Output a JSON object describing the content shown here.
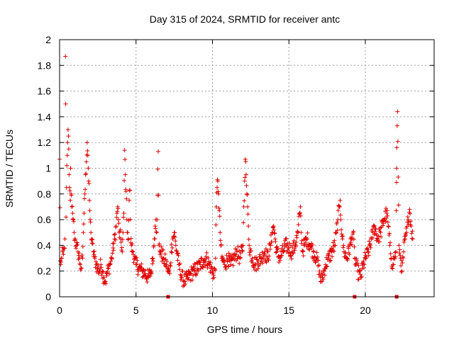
{
  "chart_data": {
    "type": "scatter",
    "title": "Day 315 of 2024, SRMTID for receiver antc",
    "xlabel": "GPS time / hours",
    "ylabel": "SRMTID / TECUs",
    "xlim": [
      0,
      24.5
    ],
    "ylim": [
      0,
      2
    ],
    "xticks": [
      0,
      5,
      10,
      15,
      20
    ],
    "xtick_labels": [
      "0",
      "5",
      "10",
      "15",
      "20"
    ],
    "yticks": [
      0,
      0.2,
      0.4,
      0.6,
      0.8,
      1.0,
      1.2,
      1.4,
      1.6,
      1.8,
      2.0
    ],
    "ytick_labels": [
      "0",
      "0.2",
      "0.4",
      "0.6",
      "0.8",
      "1",
      "1.2",
      "1.4",
      "1.6",
      "1.8",
      "2"
    ],
    "grid": true,
    "marker": "plus",
    "series": [
      {
        "name": "SRMTID",
        "color": "#e00000",
        "points": [
          [
            0.0,
            1.07
          ],
          [
            0.05,
            0.28
          ],
          [
            0.1,
            0.27
          ],
          [
            0.15,
            0.3
          ],
          [
            0.2,
            0.35
          ],
          [
            0.25,
            0.33
          ],
          [
            0.3,
            0.38
          ],
          [
            0.35,
            0.45
          ],
          [
            0.38,
            1.87
          ],
          [
            0.4,
            1.5
          ],
          [
            0.42,
            0.62
          ],
          [
            0.45,
            0.85
          ],
          [
            0.5,
            1.1
          ],
          [
            0.52,
            1.2
          ],
          [
            0.55,
            1.3
          ],
          [
            0.58,
            1.25
          ],
          [
            0.6,
            1.15
          ],
          [
            0.62,
            0.95
          ],
          [
            0.65,
            0.85
          ],
          [
            0.7,
            0.75
          ],
          [
            0.72,
            1.0
          ],
          [
            0.75,
            0.8
          ],
          [
            0.8,
            0.7
          ],
          [
            0.85,
            0.65
          ],
          [
            0.9,
            0.6
          ],
          [
            0.95,
            0.5
          ],
          [
            1.0,
            0.45
          ],
          [
            1.1,
            0.4
          ],
          [
            1.2,
            0.35
          ],
          [
            1.3,
            0.3
          ],
          [
            1.35,
            0.25
          ],
          [
            1.4,
            0.22
          ],
          [
            1.5,
            0.3
          ],
          [
            1.55,
            0.5
          ],
          [
            1.6,
            0.65
          ],
          [
            1.65,
            0.8
          ],
          [
            1.7,
            0.95
          ],
          [
            1.75,
            1.05
          ],
          [
            1.8,
            1.2
          ],
          [
            1.85,
            1.1
          ],
          [
            1.9,
            0.9
          ],
          [
            1.95,
            0.75
          ],
          [
            2.0,
            0.6
          ],
          [
            2.05,
            0.5
          ],
          [
            2.1,
            0.45
          ],
          [
            2.2,
            0.35
          ],
          [
            2.3,
            0.3
          ],
          [
            2.4,
            0.25
          ],
          [
            2.5,
            0.22
          ],
          [
            2.6,
            0.2
          ],
          [
            2.7,
            0.25
          ],
          [
            2.8,
            0.2
          ],
          [
            2.9,
            0.15
          ],
          [
            3.0,
            0.12
          ],
          [
            3.1,
            0.18
          ],
          [
            3.2,
            0.22
          ],
          [
            3.3,
            0.25
          ],
          [
            3.4,
            0.3
          ],
          [
            3.5,
            0.38
          ],
          [
            3.6,
            0.45
          ],
          [
            3.7,
            0.55
          ],
          [
            3.75,
            0.65
          ],
          [
            3.8,
            0.7
          ],
          [
            3.85,
            0.6
          ],
          [
            3.9,
            0.5
          ],
          [
            4.0,
            0.45
          ],
          [
            4.1,
            0.35
          ],
          [
            4.15,
            0.5
          ],
          [
            4.2,
            0.65
          ],
          [
            4.25,
            1.14
          ],
          [
            4.3,
            0.95
          ],
          [
            4.35,
            0.82
          ],
          [
            4.4,
            0.6
          ],
          [
            4.45,
            0.5
          ],
          [
            4.5,
            0.45
          ],
          [
            4.55,
            0.75
          ],
          [
            4.6,
            0.83
          ],
          [
            4.65,
            0.42
          ],
          [
            4.7,
            0.4
          ],
          [
            4.8,
            0.35
          ],
          [
            4.9,
            0.3
          ],
          [
            5.0,
            0.25
          ],
          [
            5.2,
            0.22
          ],
          [
            5.4,
            0.2
          ],
          [
            5.6,
            0.18
          ],
          [
            5.8,
            0.15
          ],
          [
            6.0,
            0.2
          ],
          [
            6.1,
            0.3
          ],
          [
            6.2,
            0.45
          ],
          [
            6.25,
            0.55
          ],
          [
            6.3,
            0.6
          ],
          [
            6.35,
            0.5
          ],
          [
            6.4,
            0.79
          ],
          [
            6.45,
            1.13
          ],
          [
            6.5,
            0.4
          ],
          [
            6.6,
            0.35
          ],
          [
            6.8,
            0.3
          ],
          [
            7.0,
            0.25
          ],
          [
            7.1,
            0.2
          ],
          [
            7.2,
            0.18
          ],
          [
            7.3,
            0.35
          ],
          [
            7.4,
            0.45
          ],
          [
            7.5,
            0.5
          ],
          [
            7.6,
            0.4
          ],
          [
            7.8,
            0.25
          ],
          [
            8.0,
            0.15
          ],
          [
            8.2,
            0.12
          ],
          [
            8.4,
            0.15
          ],
          [
            8.6,
            0.18
          ],
          [
            8.8,
            0.2
          ],
          [
            9.0,
            0.22
          ],
          [
            9.2,
            0.25
          ],
          [
            9.4,
            0.28
          ],
          [
            9.6,
            0.3
          ],
          [
            9.8,
            0.25
          ],
          [
            10.0,
            0.2
          ],
          [
            10.1,
            0.15
          ],
          [
            10.2,
            0.3
          ],
          [
            10.25,
            0.7
          ],
          [
            10.3,
            0.85
          ],
          [
            10.35,
            0.9
          ],
          [
            10.4,
            0.8
          ],
          [
            10.5,
            0.5
          ],
          [
            10.6,
            0.3
          ],
          [
            10.8,
            0.25
          ],
          [
            11.0,
            0.3
          ],
          [
            11.2,
            0.25
          ],
          [
            11.4,
            0.3
          ],
          [
            11.6,
            0.35
          ],
          [
            11.8,
            0.3
          ],
          [
            12.0,
            0.4
          ],
          [
            12.05,
            0.7
          ],
          [
            12.1,
            0.9
          ],
          [
            12.15,
            1.07
          ],
          [
            12.2,
            0.95
          ],
          [
            12.25,
            0.8
          ],
          [
            12.3,
            0.7
          ],
          [
            12.35,
            0.55
          ],
          [
            12.4,
            0.4
          ],
          [
            12.6,
            0.3
          ],
          [
            12.8,
            0.25
          ],
          [
            13.0,
            0.28
          ],
          [
            13.2,
            0.3
          ],
          [
            13.4,
            0.35
          ],
          [
            13.6,
            0.3
          ],
          [
            13.8,
            0.4
          ],
          [
            13.9,
            0.5
          ],
          [
            14.0,
            0.55
          ],
          [
            14.1,
            0.45
          ],
          [
            14.2,
            0.35
          ],
          [
            14.4,
            0.3
          ],
          [
            14.6,
            0.35
          ],
          [
            14.8,
            0.4
          ],
          [
            15.0,
            0.38
          ],
          [
            15.2,
            0.35
          ],
          [
            15.4,
            0.4
          ],
          [
            15.6,
            0.5
          ],
          [
            15.7,
            0.65
          ],
          [
            15.75,
            0.7
          ],
          [
            15.8,
            0.5
          ],
          [
            15.9,
            0.35
          ],
          [
            16.0,
            0.4
          ],
          [
            16.2,
            0.45
          ],
          [
            16.4,
            0.4
          ],
          [
            16.6,
            0.35
          ],
          [
            16.8,
            0.3
          ],
          [
            17.0,
            0.2
          ],
          [
            17.1,
            0.12
          ],
          [
            17.2,
            0.15
          ],
          [
            17.4,
            0.25
          ],
          [
            17.6,
            0.3
          ],
          [
            17.8,
            0.35
          ],
          [
            18.0,
            0.4
          ],
          [
            18.1,
            0.5
          ],
          [
            18.2,
            0.6
          ],
          [
            18.3,
            0.7
          ],
          [
            18.35,
            0.75
          ],
          [
            18.4,
            0.6
          ],
          [
            18.5,
            0.45
          ],
          [
            18.6,
            0.35
          ],
          [
            18.8,
            0.3
          ],
          [
            19.0,
            0.4
          ],
          [
            19.1,
            0.45
          ],
          [
            19.2,
            0.5
          ],
          [
            19.3,
            0.3
          ],
          [
            19.5,
            0.2
          ],
          [
            19.7,
            0.15
          ],
          [
            19.8,
            0.22
          ],
          [
            20.0,
            0.3
          ],
          [
            20.2,
            0.35
          ],
          [
            20.4,
            0.45
          ],
          [
            20.5,
            0.5
          ],
          [
            20.6,
            0.55
          ],
          [
            20.8,
            0.45
          ],
          [
            21.0,
            0.5
          ],
          [
            21.2,
            0.6
          ],
          [
            21.4,
            0.65
          ],
          [
            21.5,
            0.55
          ],
          [
            21.6,
            0.4
          ],
          [
            21.7,
            0.3
          ],
          [
            21.8,
            0.25
          ],
          [
            21.9,
            0.3
          ],
          [
            22.0,
            0.35
          ],
          [
            22.02,
            0.67
          ],
          [
            22.04,
            0.89
          ],
          [
            22.05,
            1.0
          ],
          [
            22.06,
            1.16
          ],
          [
            22.08,
            1.33
          ],
          [
            22.1,
            1.44
          ],
          [
            22.2,
            0.4
          ],
          [
            22.3,
            0.3
          ],
          [
            22.4,
            0.2
          ],
          [
            22.5,
            0.35
          ],
          [
            22.6,
            0.45
          ],
          [
            22.7,
            0.5
          ],
          [
            22.8,
            0.6
          ],
          [
            22.9,
            0.68
          ],
          [
            23.0,
            0.55
          ],
          [
            23.1,
            0.45
          ]
        ],
        "zero_markers": [
          7.1,
          19.3,
          22.05
        ]
      }
    ]
  }
}
